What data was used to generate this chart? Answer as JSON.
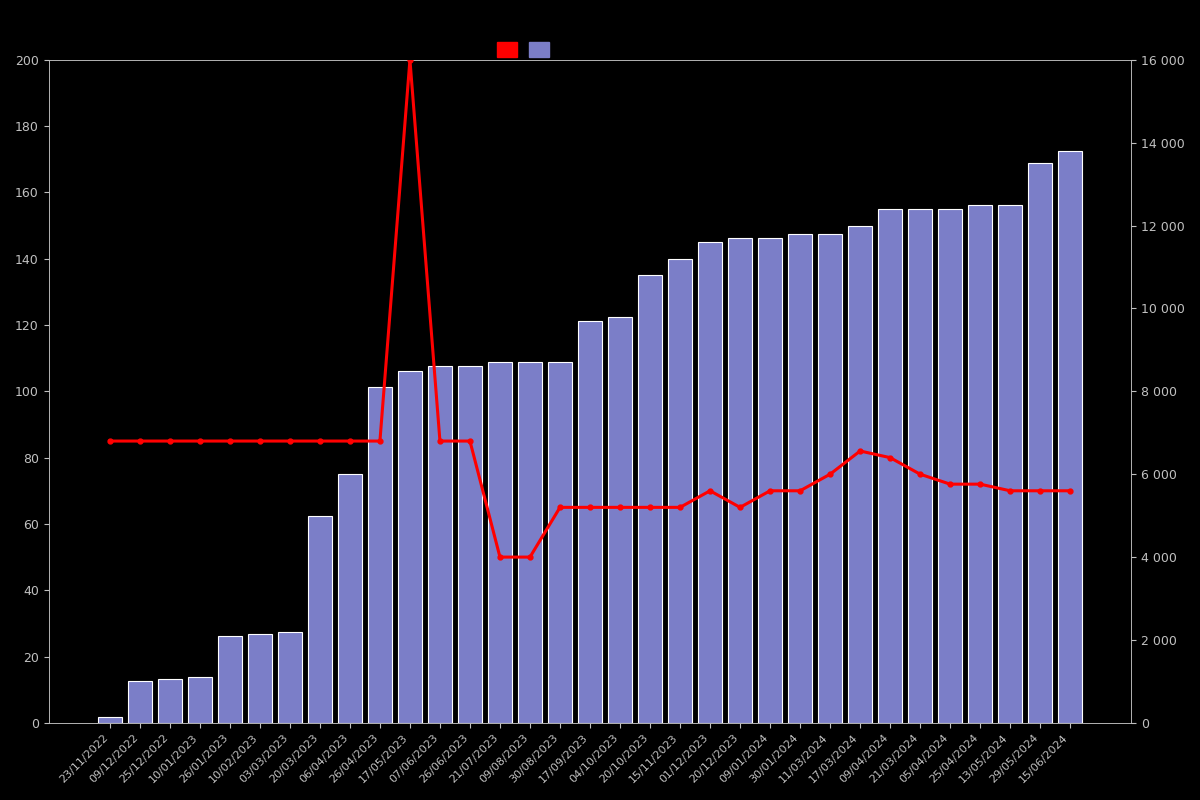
{
  "date_labels": [
    "23/11/2022",
    "09/12/2022",
    "25/12/2022",
    "10/01/2023",
    "26/01/2023",
    "10/02/2023",
    "03/03/2023",
    "20/03/2023",
    "06/04/2023",
    "26/04/2023",
    "17/05/2023",
    "07/06/2023",
    "26/06/2023",
    "21/07/2023",
    "09/08/2023",
    "30/08/2023",
    "17/09/2023",
    "04/10/2023",
    "20/10/2023",
    "15/11/2023",
    "01/12/2023",
    "20/12/2023",
    "09/01/2024",
    "30/01/2024",
    "11/03/2024",
    "17/03/2024",
    "09/04/2024",
    "21/03/2024",
    "05/04/2024",
    "25/04/2024",
    "13/05/2024",
    "29/05/2024",
    "15/06/2024"
  ],
  "bar_values_students": [
    150,
    1000,
    1050,
    1100,
    2100,
    2150,
    2200,
    5000,
    6000,
    8100,
    8500,
    8600,
    8600,
    8700,
    8700,
    8700,
    9700,
    9800,
    10800,
    11200,
    11600,
    11700,
    11700,
    11800,
    11800,
    12000,
    12400,
    12400,
    12400,
    12500,
    12500,
    13500,
    13800
  ],
  "price_line": [
    85,
    85,
    85,
    85,
    85,
    85,
    85,
    85,
    85,
    85,
    200,
    85,
    85,
    50,
    50,
    65,
    65,
    65,
    65,
    65,
    70,
    65,
    70,
    70,
    75,
    82,
    80,
    75,
    72,
    72,
    70,
    70,
    70
  ],
  "bar_color": "#7B7EC8",
  "bar_edge_color": "#FFFFFF",
  "line_color": "#FF0000",
  "background_color": "#000000",
  "text_color": "#C0C0C0",
  "ylim_left": [
    0,
    200
  ],
  "ylim_right": [
    0,
    16000
  ],
  "yticks_left": [
    0,
    20,
    40,
    60,
    80,
    100,
    120,
    140,
    160,
    180,
    200
  ],
  "yticks_right": [
    0,
    2000,
    4000,
    6000,
    8000,
    10000,
    12000,
    14000,
    16000
  ],
  "ytick_labels_right": [
    "0",
    "2 000",
    "4 000",
    "6 000",
    "8 000",
    "10 000",
    "12 000",
    "14 000",
    "16 000"
  ],
  "legend_colors": [
    "#FF0000",
    "#7B7EC8"
  ]
}
